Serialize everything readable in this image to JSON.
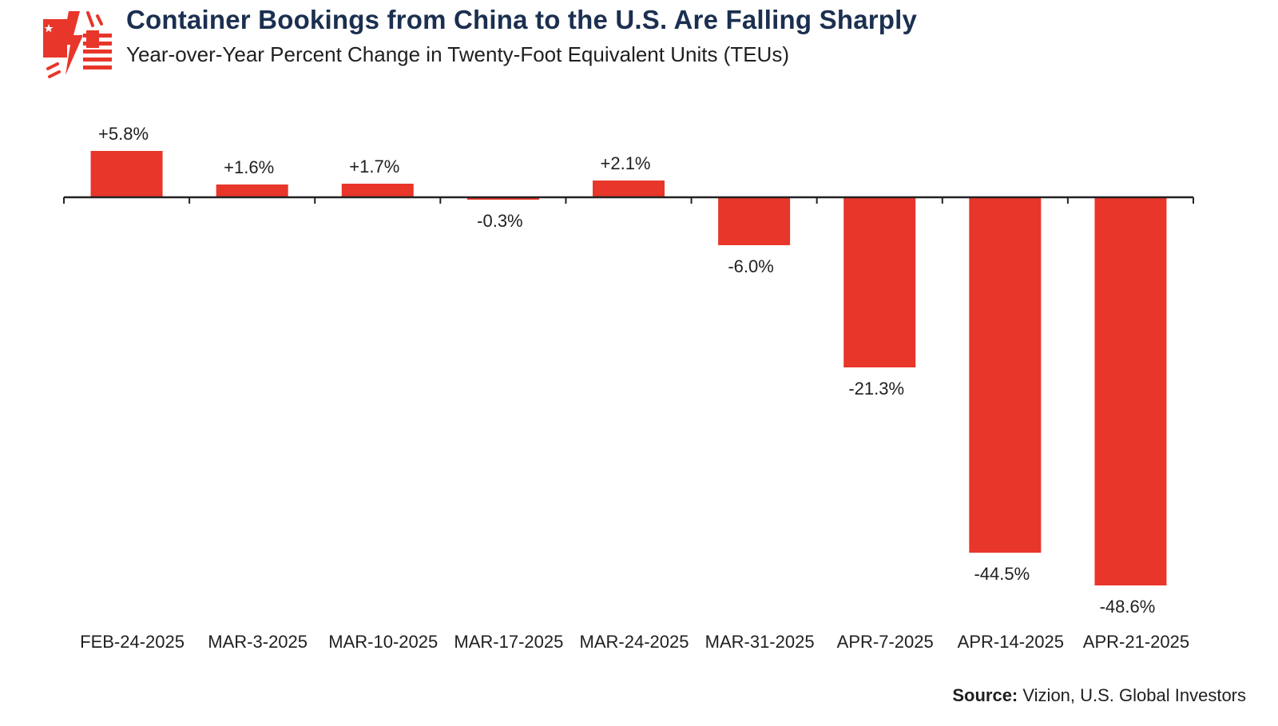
{
  "header": {
    "title": "Container Bookings from China to the U.S. Are Falling Sharply",
    "subtitle": "Year-over-Year Percent Change in Twenty-Foot Equivalent Units (TEUs)",
    "logo_icon": "china-us-flag-lightning-icon"
  },
  "footer": {
    "source_label": "Source:",
    "source_text": "Vizion, U.S. Global Investors"
  },
  "colors": {
    "bar": "#e8362a",
    "title": "#1b2f50",
    "axis": "#222222"
  },
  "chart_data": {
    "type": "bar",
    "title": "Container Bookings from China to the U.S. Are Falling Sharply",
    "subtitle": "Year-over-Year Percent Change in Twenty-Foot Equivalent Units (TEUs)",
    "categories": [
      "FEB-24-2025",
      "MAR-3-2025",
      "MAR-10-2025",
      "MAR-17-2025",
      "MAR-24-2025",
      "MAR-31-2025",
      "APR-7-2025",
      "APR-14-2025",
      "APR-21-2025"
    ],
    "values": [
      5.8,
      1.6,
      1.7,
      -0.3,
      2.1,
      -6.0,
      -21.3,
      -44.5,
      -48.6
    ],
    "data_labels": [
      "+5.8%",
      "+1.6%",
      "+1.7%",
      "-0.3%",
      "+2.1%",
      "-6.0%",
      "-21.3%",
      "-44.5%",
      "-48.6%"
    ],
    "xlabel": "",
    "ylabel": "",
    "grid": false,
    "legend": "none"
  }
}
